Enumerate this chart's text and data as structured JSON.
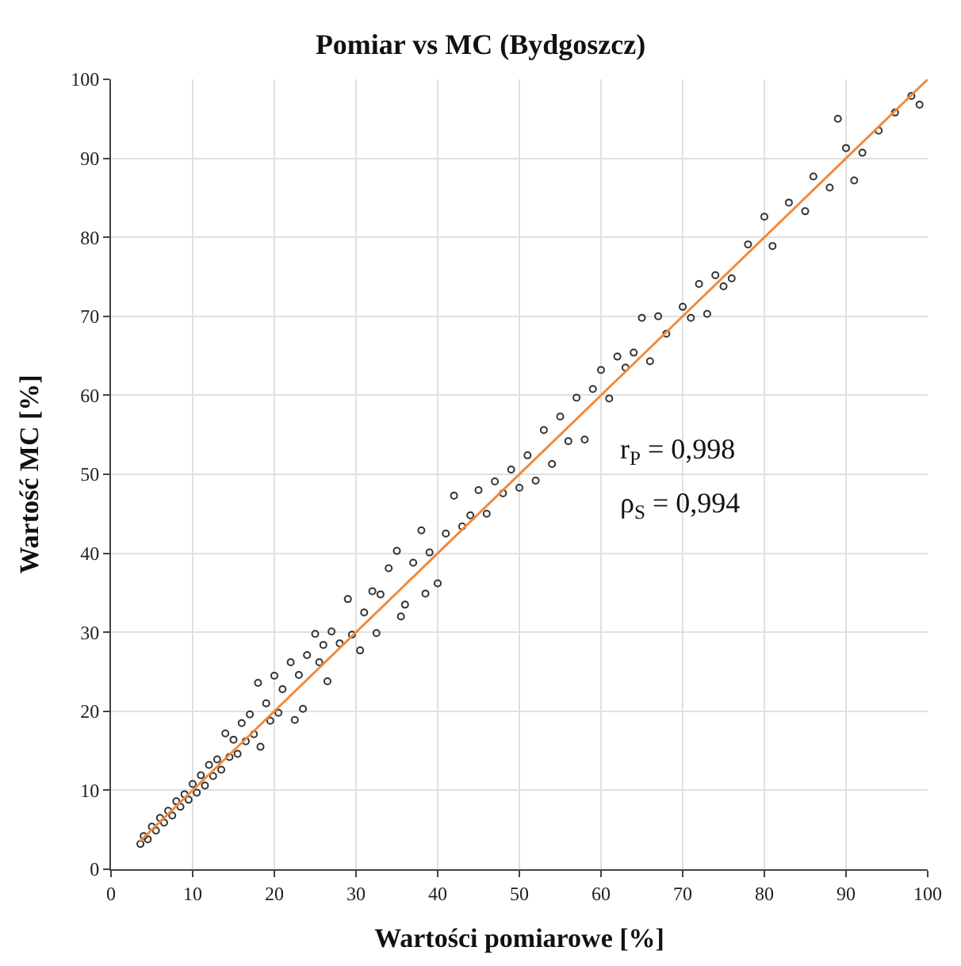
{
  "chart_data": {
    "type": "scatter",
    "title": "Pomiar vs MC (Bydgoszcz)",
    "xlabel": "Wartości pomiarowe [%]",
    "ylabel": "Wartość MC [%]",
    "xlim": [
      0,
      100
    ],
    "ylim": [
      0,
      100
    ],
    "xticks": [
      0,
      10,
      20,
      30,
      40,
      50,
      60,
      70,
      80,
      90,
      100
    ],
    "yticks": [
      0,
      10,
      20,
      30,
      40,
      50,
      60,
      70,
      80,
      90,
      100
    ],
    "grid": true,
    "marker": "circle",
    "annotations": [
      "r$_{P}$ = 0,998",
      "ρ$_{S}$ = 0,994"
    ],
    "series": [
      {
        "color": "#333333",
        "x": [
          3.6,
          4,
          4.5,
          5,
          5.5,
          6,
          6.5,
          7,
          7.5,
          8,
          8.5,
          9,
          9.5,
          10,
          10.5,
          11,
          11.5,
          12,
          12.5,
          13,
          13.5,
          14,
          14.5,
          15,
          15.5,
          16,
          16.5,
          17,
          17.5,
          18,
          18.3,
          19,
          19.5,
          20,
          20.5,
          21,
          22,
          22.5,
          23,
          23.5,
          24,
          25,
          25.5,
          26,
          26.5,
          27,
          28,
          29,
          29.5,
          30.5,
          31,
          32,
          32.5,
          33,
          34,
          35,
          35.5,
          36,
          37,
          38,
          38.5,
          39,
          40,
          41,
          42,
          43,
          44,
          45,
          46,
          47,
          48,
          49,
          50,
          51,
          52,
          53,
          54,
          55,
          56,
          57,
          58,
          59,
          60,
          61,
          62,
          63,
          64,
          65,
          66,
          67,
          68,
          70,
          71,
          72,
          73,
          74,
          75,
          76,
          78,
          80,
          81,
          83,
          85,
          86,
          88,
          89,
          90,
          91,
          92,
          94,
          96,
          98,
          99
        ],
        "values": [
          3.2,
          4.2,
          3.8,
          5.4,
          4.9,
          6.5,
          5.9,
          7.4,
          6.8,
          8.6,
          7.9,
          9.5,
          8.8,
          10.8,
          9.7,
          11.9,
          10.6,
          13.2,
          11.8,
          13.9,
          12.6,
          17.2,
          14.2,
          16.4,
          14.6,
          18.5,
          16.2,
          19.6,
          17.1,
          23.6,
          15.5,
          21.0,
          18.8,
          24.5,
          19.8,
          22.8,
          26.2,
          18.9,
          24.6,
          20.3,
          27.1,
          29.8,
          26.2,
          28.4,
          23.8,
          30.1,
          28.6,
          34.2,
          29.7,
          27.7,
          32.5,
          35.2,
          29.9,
          34.8,
          38.1,
          40.3,
          32.0,
          33.5,
          38.8,
          42.9,
          34.9,
          40.1,
          36.2,
          42.5,
          47.3,
          43.4,
          44.8,
          48.0,
          45.0,
          49.1,
          47.6,
          50.6,
          48.3,
          52.4,
          49.2,
          55.6,
          51.3,
          57.3,
          54.2,
          59.7,
          54.4,
          60.8,
          63.2,
          59.6,
          64.9,
          63.5,
          65.4,
          69.8,
          64.3,
          70.0,
          67.8,
          71.2,
          69.8,
          74.1,
          70.3,
          75.2,
          73.8,
          74.8,
          79.1,
          82.6,
          78.9,
          84.4,
          83.3,
          87.7,
          86.3,
          95.0,
          91.3,
          87.2,
          90.7,
          93.5,
          95.8,
          97.9,
          96.8
        ]
      },
      {
        "type": "line",
        "color": "#f08a3c",
        "marker": "none",
        "x": [
          3.5,
          100
        ],
        "values": [
          3.5,
          100
        ]
      }
    ]
  }
}
